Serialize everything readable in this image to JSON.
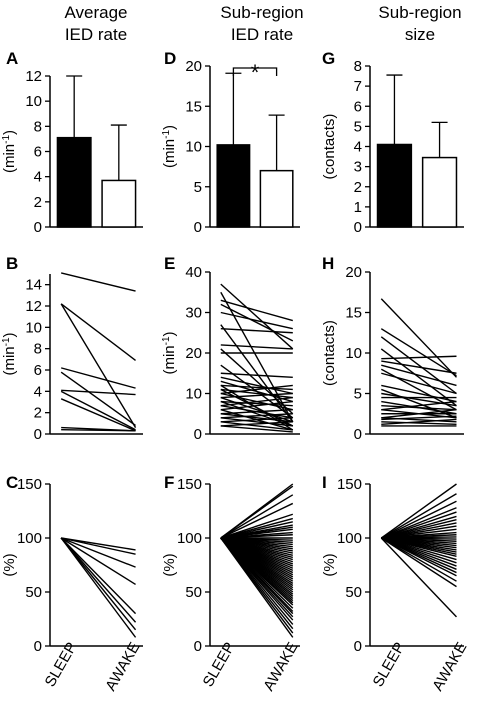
{
  "figure": {
    "column_titles": [
      [
        "Average",
        "IED rate"
      ],
      [
        "Sub-region",
        "IED rate"
      ],
      [
        "Sub-region",
        "size"
      ]
    ],
    "panel_letters": [
      "A",
      "B",
      "C",
      "D",
      "E",
      "F",
      "G",
      "H",
      "I"
    ],
    "x_categories": [
      "SLEEP",
      "AWAKE"
    ],
    "significance_marker": "*"
  },
  "chart_data": [
    {
      "id": "A",
      "type": "bar",
      "categories": [
        "SLEEP",
        "AWAKE"
      ],
      "values": [
        7.1,
        3.7
      ],
      "errors": [
        4.9,
        4.4
      ],
      "colors": [
        "#000000",
        "#ffffff"
      ],
      "ylabel": "(min-1)",
      "ylim": [
        0,
        12
      ],
      "yticks": [
        0,
        2,
        4,
        6,
        8,
        10,
        12
      ],
      "grid": false
    },
    {
      "id": "D",
      "type": "bar",
      "categories": [
        "SLEEP",
        "AWAKE"
      ],
      "values": [
        10.2,
        7.0
      ],
      "errors": [
        8.9,
        6.9
      ],
      "colors": [
        "#000000",
        "#ffffff"
      ],
      "ylabel": "(min-1)",
      "ylim": [
        0,
        20
      ],
      "yticks": [
        0,
        5,
        10,
        15,
        20
      ],
      "grid": false,
      "significance": "*"
    },
    {
      "id": "G",
      "type": "bar",
      "categories": [
        "SLEEP",
        "AWAKE"
      ],
      "values": [
        4.1,
        3.45
      ],
      "errors": [
        3.45,
        1.75
      ],
      "colors": [
        "#000000",
        "#ffffff"
      ],
      "ylabel": "(contacts)",
      "ylim": [
        0,
        8
      ],
      "yticks": [
        0,
        1,
        2,
        3,
        4,
        5,
        6,
        7,
        8
      ],
      "grid": false
    },
    {
      "id": "B",
      "type": "line",
      "categories": [
        "SLEEP",
        "AWAKE"
      ],
      "ylabel": "(min-1)",
      "ylim": [
        0,
        15
      ],
      "yticks": [
        0,
        2,
        4,
        6,
        8,
        10,
        12,
        14
      ],
      "pairs": [
        [
          15.1,
          13.4
        ],
        [
          12.2,
          6.9
        ],
        [
          12.2,
          0.6
        ],
        [
          6.2,
          4.3
        ],
        [
          5.8,
          0.8
        ],
        [
          4.1,
          3.7
        ],
        [
          4.0,
          0.4
        ],
        [
          3.3,
          0.3
        ],
        [
          0.6,
          0.3
        ],
        [
          0.4,
          0.3
        ]
      ]
    },
    {
      "id": "E",
      "type": "line",
      "categories": [
        "SLEEP",
        "AWAKE"
      ],
      "ylabel": "(min-1)",
      "ylim": [
        0,
        40
      ],
      "yticks": [
        0,
        10,
        20,
        30,
        40
      ],
      "pairs": [
        [
          37,
          21
        ],
        [
          35,
          3
        ],
        [
          33,
          28
        ],
        [
          32,
          23
        ],
        [
          30,
          26
        ],
        [
          27,
          3
        ],
        [
          26,
          25
        ],
        [
          22,
          21
        ],
        [
          21,
          5
        ],
        [
          20,
          20
        ],
        [
          17,
          4
        ],
        [
          15,
          14
        ],
        [
          14,
          10
        ],
        [
          13,
          8
        ],
        [
          12,
          11
        ],
        [
          12,
          1
        ],
        [
          11,
          9
        ],
        [
          11,
          2
        ],
        [
          10,
          12
        ],
        [
          10,
          6
        ],
        [
          9,
          10
        ],
        [
          9,
          3
        ],
        [
          8,
          7
        ],
        [
          8,
          2
        ],
        [
          7,
          9
        ],
        [
          7,
          4
        ],
        [
          6,
          8
        ],
        [
          6,
          1
        ],
        [
          5,
          6
        ],
        [
          5,
          3
        ],
        [
          4,
          5
        ],
        [
          4,
          2
        ],
        [
          3,
          4
        ],
        [
          3,
          1
        ],
        [
          2,
          3
        ],
        [
          2,
          0.5
        ]
      ]
    },
    {
      "id": "H",
      "type": "line",
      "categories": [
        "SLEEP",
        "AWAKE"
      ],
      "ylabel": "(contacts)",
      "ylim": [
        0,
        20
      ],
      "yticks": [
        0,
        5,
        10,
        15,
        20
      ],
      "pairs": [
        [
          16.7,
          7.0
        ],
        [
          13.0,
          7.2
        ],
        [
          12.0,
          5.0
        ],
        [
          10.5,
          3.5
        ],
        [
          9.3,
          9.6
        ],
        [
          9.0,
          7.5
        ],
        [
          8.5,
          6.0
        ],
        [
          8.0,
          3.0
        ],
        [
          7.5,
          5.0
        ],
        [
          6.0,
          4.0
        ],
        [
          5.5,
          2.0
        ],
        [
          5.0,
          3.5
        ],
        [
          4.5,
          4.5
        ],
        [
          4.0,
          2.5
        ],
        [
          3.5,
          3.0
        ],
        [
          3.0,
          2.0
        ],
        [
          3.0,
          4.0
        ],
        [
          2.5,
          2.5
        ],
        [
          2.0,
          3.0
        ],
        [
          2.0,
          1.5
        ],
        [
          1.8,
          2.2
        ],
        [
          1.5,
          1.2
        ],
        [
          1.2,
          1.8
        ],
        [
          1.0,
          1.0
        ]
      ]
    },
    {
      "id": "C",
      "type": "line",
      "categories": [
        "SLEEP",
        "AWAKE"
      ],
      "ylabel": "(%)",
      "ylim": [
        0,
        150
      ],
      "yticks": [
        0,
        50,
        100,
        150
      ],
      "pairs": [
        [
          100,
          89
        ],
        [
          100,
          85
        ],
        [
          100,
          73
        ],
        [
          100,
          57
        ],
        [
          100,
          30
        ],
        [
          100,
          22
        ],
        [
          100,
          15
        ],
        [
          100,
          8
        ]
      ]
    },
    {
      "id": "F",
      "type": "line",
      "categories": [
        "SLEEP",
        "AWAKE"
      ],
      "ylabel": "(%)",
      "ylim": [
        0,
        150
      ],
      "yticks": [
        0,
        50,
        100,
        150
      ],
      "pairs": [
        [
          100,
          150
        ],
        [
          100,
          148
        ],
        [
          100,
          140
        ],
        [
          100,
          132
        ],
        [
          100,
          122
        ],
        [
          100,
          118
        ],
        [
          100,
          115
        ],
        [
          100,
          112
        ],
        [
          100,
          110
        ],
        [
          100,
          108
        ],
        [
          100,
          105
        ],
        [
          100,
          103
        ],
        [
          100,
          100
        ],
        [
          100,
          98
        ],
        [
          100,
          96
        ],
        [
          100,
          94
        ],
        [
          100,
          92
        ],
        [
          100,
          90
        ],
        [
          100,
          88
        ],
        [
          100,
          86
        ],
        [
          100,
          84
        ],
        [
          100,
          82
        ],
        [
          100,
          80
        ],
        [
          100,
          78
        ],
        [
          100,
          76
        ],
        [
          100,
          74
        ],
        [
          100,
          72
        ],
        [
          100,
          70
        ],
        [
          100,
          68
        ],
        [
          100,
          66
        ],
        [
          100,
          64
        ],
        [
          100,
          62
        ],
        [
          100,
          60
        ],
        [
          100,
          58
        ],
        [
          100,
          56
        ],
        [
          100,
          54
        ],
        [
          100,
          52
        ],
        [
          100,
          50
        ],
        [
          100,
          48
        ],
        [
          100,
          46
        ],
        [
          100,
          44
        ],
        [
          100,
          42
        ],
        [
          100,
          40
        ],
        [
          100,
          38
        ],
        [
          100,
          35
        ],
        [
          100,
          32
        ],
        [
          100,
          30
        ],
        [
          100,
          27
        ],
        [
          100,
          24
        ],
        [
          100,
          20
        ],
        [
          100,
          16
        ],
        [
          100,
          12
        ],
        [
          100,
          8
        ]
      ]
    },
    {
      "id": "I",
      "type": "line",
      "categories": [
        "SLEEP",
        "AWAKE"
      ],
      "ylabel": "(%)",
      "ylim": [
        0,
        150
      ],
      "yticks": [
        0,
        50,
        100,
        150
      ],
      "pairs": [
        [
          100,
          150
        ],
        [
          100,
          141
        ],
        [
          100,
          134
        ],
        [
          100,
          128
        ],
        [
          100,
          124
        ],
        [
          100,
          120
        ],
        [
          100,
          117
        ],
        [
          100,
          114
        ],
        [
          100,
          111
        ],
        [
          100,
          108
        ],
        [
          100,
          105
        ],
        [
          100,
          103
        ],
        [
          100,
          101
        ],
        [
          100,
          99
        ],
        [
          100,
          97
        ],
        [
          100,
          95
        ],
        [
          100,
          93
        ],
        [
          100,
          91
        ],
        [
          100,
          89
        ],
        [
          100,
          87
        ],
        [
          100,
          85
        ],
        [
          100,
          83
        ],
        [
          100,
          80
        ],
        [
          100,
          77
        ],
        [
          100,
          74
        ],
        [
          100,
          71
        ],
        [
          100,
          68
        ],
        [
          100,
          65
        ],
        [
          100,
          60
        ],
        [
          100,
          55
        ],
        [
          100,
          27
        ]
      ]
    }
  ]
}
